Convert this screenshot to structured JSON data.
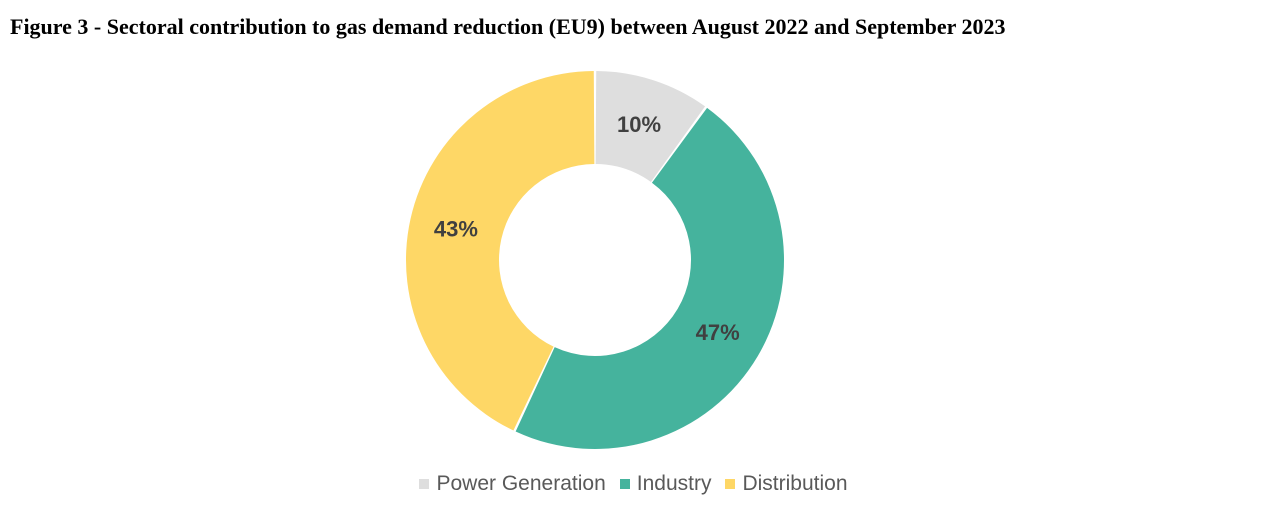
{
  "figure": {
    "title": "Figure 3 - Sectoral contribution to gas demand reduction (EU9) between August 2022 and September 2023"
  },
  "chart_data": {
    "type": "pie",
    "variant": "donut",
    "categories": [
      "Power Generation",
      "Industry",
      "Distribution"
    ],
    "values": [
      10,
      47,
      43
    ],
    "data_labels": [
      "10%",
      "47%",
      "43%"
    ],
    "colors": [
      "#dedede",
      "#45b39d",
      "#fed766"
    ],
    "legend": "bottom",
    "title": "Figure 3 - Sectoral contribution to gas demand reduction (EU9) between August 2022 and September 2023"
  },
  "legend": {
    "items": [
      {
        "label": "Power Generation",
        "color": "#dedede"
      },
      {
        "label": "Industry",
        "color": "#45b39d"
      },
      {
        "label": "Distribution",
        "color": "#fed766"
      }
    ]
  }
}
